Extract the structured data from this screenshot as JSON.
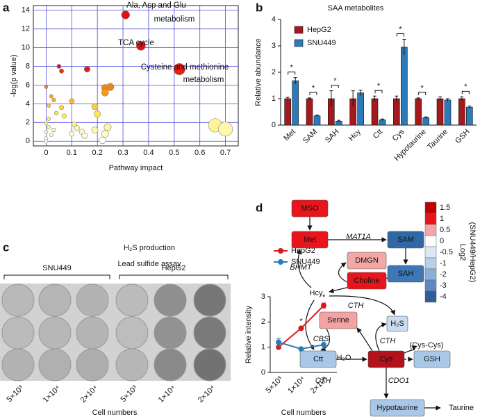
{
  "panels": [
    "a",
    "b",
    "c",
    "d"
  ],
  "chart_data": [
    {
      "type": "scatter",
      "x_label": "Pathway impact",
      "y_label": "-log(p value)",
      "x": [
        0.31,
        0.37,
        0.52,
        0.05,
        0.06,
        0.16,
        0.23,
        0.25,
        0.23,
        0.0,
        0.02,
        0.03,
        0.1,
        0.06,
        0.01,
        0.04,
        0.07,
        0.19,
        0.2,
        0.11,
        0.12,
        0.14,
        0.1,
        0.15,
        0.19,
        0.24,
        0.23,
        0.22,
        0.66,
        0.7,
        0.0,
        0.01,
        0.0,
        0.02,
        0.0,
        0.03,
        0.01,
        0.0
      ],
      "y": [
        13.5,
        10.2,
        7.7,
        8.0,
        7.5,
        7.7,
        5.7,
        5.8,
        5.2,
        5.8,
        4.8,
        4.4,
        4.3,
        3.6,
        3.8,
        3.0,
        2.7,
        3.7,
        2.9,
        1.8,
        1.4,
        1.0,
        0.8,
        0.6,
        1.2,
        1.5,
        0.8,
        0.1,
        1.7,
        1.3,
        1.9,
        1.5,
        1.0,
        0.7,
        0.3,
        1.2,
        2.4,
        0.0
      ],
      "xlim": [
        -0.05,
        0.75
      ],
      "ylim": [
        -0.5,
        14.5
      ],
      "xticks": [
        0,
        0.1,
        0.2,
        0.3,
        0.4,
        0.5,
        0.6,
        0.7
      ],
      "yticks": [
        0,
        2,
        4,
        6,
        8,
        10,
        12,
        14
      ],
      "grid": true,
      "grid_color": "#4a4ae0",
      "color_scale": [
        "#ffffff",
        "#ffee55",
        "#f59a10",
        "#e01010"
      ],
      "annotations": [
        "Ala, Asp and Glu",
        "metabolism",
        "TCA cycle",
        "Cysteine and methionine",
        "metabolism"
      ]
    },
    {
      "type": "bar",
      "title": "SAA metabolites",
      "y_label": "Relative abundance",
      "categories": [
        "Met",
        "SAM",
        "SAH",
        "Hcy",
        "Ctt",
        "Cys",
        "Hypotaurine",
        "Taurine",
        "GSH"
      ],
      "series": [
        {
          "name": "HepG2",
          "color": "#a3191d",
          "values": [
            1.0,
            1.0,
            1.0,
            1.0,
            1.0,
            1.0,
            1.0,
            1.0,
            1.0
          ],
          "errors": [
            0.05,
            0.03,
            0.3,
            0.3,
            0.1,
            0.1,
            0.03,
            0.07,
            0.07
          ]
        },
        {
          "name": "SNU449",
          "color": "#2b7bba",
          "values": [
            1.68,
            0.35,
            0.15,
            1.22,
            0.2,
            2.95,
            0.28,
            0.95,
            0.68
          ],
          "errors": [
            0.12,
            0.03,
            0.03,
            0.1,
            0.03,
            0.3,
            0.03,
            0.05,
            0.04
          ]
        }
      ],
      "significance": [
        "*",
        "*",
        "*",
        null,
        "*",
        "*",
        "*",
        null,
        "*"
      ],
      "ylim": [
        0,
        4
      ],
      "yticks": [
        0,
        1,
        2,
        3,
        4
      ]
    },
    {
      "type": "line",
      "title": "H₂S production",
      "subtitle": "Lead sulfide assay",
      "y_label": "Relative intensity",
      "x_label": "Cell numbers",
      "categories": [
        "5×10³",
        "1×10⁴",
        "2×10⁴"
      ],
      "series": [
        {
          "name": "HepG2",
          "color": "#d7191c",
          "values": [
            1.0,
            1.75,
            2.65
          ],
          "errors": [
            0.05,
            0.05,
            0.1
          ]
        },
        {
          "name": "SNU449",
          "color": "#2b7bba",
          "values": [
            1.2,
            0.93,
            1.1
          ],
          "errors": [
            0.15,
            0.05,
            0.15
          ]
        }
      ],
      "significance": [
        null,
        "*",
        "*"
      ],
      "ylim": [
        0,
        3
      ],
      "yticks": [
        0,
        1,
        2,
        3
      ]
    }
  ],
  "blot": {
    "groups": [
      "SNU449",
      "HepG2"
    ],
    "column_labels": [
      "5×10³",
      "1×10⁴",
      "2×10⁴",
      "5×10³",
      "1×10⁴",
      "2×10⁴"
    ],
    "x_label": "Cell numbers"
  },
  "diagram": {
    "nodes": [
      {
        "label": "MSO",
        "color": "#e8161c"
      },
      {
        "label": "Met",
        "color": "#e8161c"
      },
      {
        "label": "SAM",
        "color": "#3068a6"
      },
      {
        "label": "DMGN",
        "color": "#f4a7a7"
      },
      {
        "label": "Choline",
        "color": "#e8161c"
      },
      {
        "label": "SAH",
        "color": "#3d77b4"
      },
      {
        "label": "Serine",
        "color": "#f4a3a3"
      },
      {
        "label": "H₂S",
        "color": "#c9dcf0"
      },
      {
        "label": "Ctt",
        "color": "#a9c8e7"
      },
      {
        "label": "Cys",
        "color": "#b3121a"
      },
      {
        "label": "GSH",
        "color": "#a9c8e7"
      },
      {
        "label": "Hypotaurine",
        "color": "#a9c8e7"
      }
    ],
    "texts": [
      "Hcy",
      "H₂O",
      "(Cys-Cys)",
      "Taurine"
    ],
    "enzymes": [
      {
        "label": "MAT1A",
        "color": "#2f5597"
      },
      {
        "label": "BHMT",
        "color": "#2e7d32"
      },
      {
        "label": "CTH",
        "color": "#9dc3e6"
      },
      {
        "label": "CBS",
        "color": "#9dc3e6"
      },
      {
        "label": "CTH",
        "color": "#9dc3e6"
      },
      {
        "label": "CTH",
        "color": "#9dc3e6"
      },
      {
        "label": "CDO1",
        "color": "#2f6fb0"
      }
    ],
    "colorbar": {
      "title": [
        "Log2",
        "(SNU449/HepG2)"
      ],
      "ticks": [
        1.5,
        1,
        0.5,
        0,
        -0.5,
        -1,
        -2,
        -3,
        -4
      ],
      "colors": [
        "#c00000",
        "#e8161c",
        "#f4a7a7",
        "#ffffff",
        "#dde8f5",
        "#b7cfe9",
        "#8ab0d8",
        "#5b8bc0",
        "#2f5f96"
      ]
    }
  }
}
